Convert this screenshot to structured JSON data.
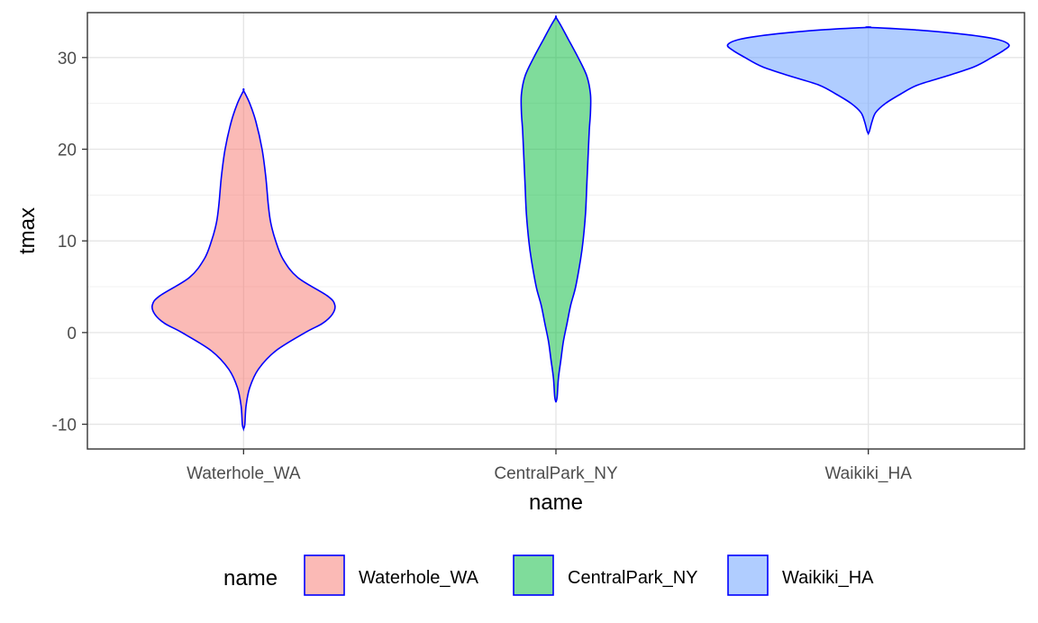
{
  "chart_data": {
    "type": "violin",
    "xlabel": "name",
    "ylabel": "tmax",
    "ylim": [
      -12.7,
      34.9
    ],
    "yticks": [
      -10,
      0,
      10,
      20,
      30
    ],
    "grid": true,
    "outline_color": "#0000ff",
    "legend": {
      "title": "name",
      "position": "bottom"
    },
    "categories": [
      "Waterhole_WA",
      "CentralPark_NY",
      "Waikiki_HA"
    ],
    "series": [
      {
        "name": "Waterhole_WA",
        "color": "#f8766d",
        "min": -10.5,
        "max": 26.4,
        "profile": [
          [
            -10.5,
            0.0
          ],
          [
            -10.0,
            0.005
          ],
          [
            -8.0,
            0.01
          ],
          [
            -6.0,
            0.025
          ],
          [
            -4.0,
            0.06
          ],
          [
            -2.0,
            0.13
          ],
          [
            0.0,
            0.25
          ],
          [
            1.0,
            0.32
          ],
          [
            2.0,
            0.36
          ],
          [
            3.0,
            0.37
          ],
          [
            4.0,
            0.34
          ],
          [
            6.0,
            0.22
          ],
          [
            8.0,
            0.16
          ],
          [
            10.0,
            0.13
          ],
          [
            12.0,
            0.11
          ],
          [
            14.0,
            0.1
          ],
          [
            17.0,
            0.09
          ],
          [
            20.0,
            0.075
          ],
          [
            23.0,
            0.05
          ],
          [
            25.0,
            0.025
          ],
          [
            26.4,
            0.0
          ]
        ]
      },
      {
        "name": "CentralPark_NY",
        "color": "#00ba38",
        "min": -7.6,
        "max": 34.4,
        "profile": [
          [
            -7.6,
            0.0
          ],
          [
            -7.0,
            0.005
          ],
          [
            -5.0,
            0.01
          ],
          [
            -3.0,
            0.02
          ],
          [
            -1.0,
            0.03
          ],
          [
            1.0,
            0.045
          ],
          [
            3.0,
            0.06
          ],
          [
            5.0,
            0.08
          ],
          [
            8.0,
            0.1
          ],
          [
            10.0,
            0.11
          ],
          [
            13.0,
            0.12
          ],
          [
            16.0,
            0.125
          ],
          [
            19.0,
            0.13
          ],
          [
            22.0,
            0.135
          ],
          [
            24.0,
            0.14
          ],
          [
            26.0,
            0.14
          ],
          [
            28.0,
            0.125
          ],
          [
            30.0,
            0.09
          ],
          [
            32.0,
            0.05
          ],
          [
            33.5,
            0.02
          ],
          [
            34.4,
            0.0
          ]
        ]
      },
      {
        "name": "Waikiki_HA",
        "color": "#619cff",
        "min": 21.7,
        "max": 33.3,
        "profile": [
          [
            21.7,
            0.0
          ],
          [
            22.0,
            0.005
          ],
          [
            23.0,
            0.015
          ],
          [
            24.0,
            0.03
          ],
          [
            25.0,
            0.07
          ],
          [
            26.0,
            0.13
          ],
          [
            27.0,
            0.2
          ],
          [
            28.0,
            0.32
          ],
          [
            29.0,
            0.43
          ],
          [
            30.0,
            0.5
          ],
          [
            30.8,
            0.55
          ],
          [
            31.4,
            0.57
          ],
          [
            32.0,
            0.52
          ],
          [
            32.5,
            0.4
          ],
          [
            33.0,
            0.2
          ],
          [
            33.3,
            0.0
          ]
        ]
      }
    ]
  }
}
